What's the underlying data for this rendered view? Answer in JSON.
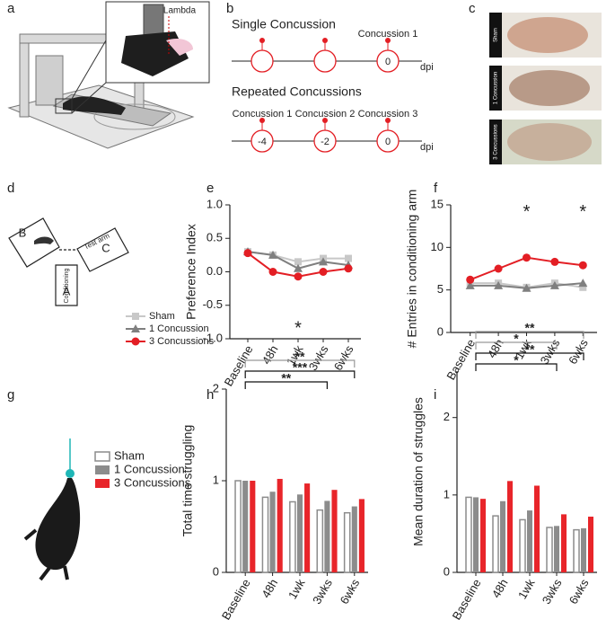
{
  "panel_letters": [
    "a",
    "b",
    "c",
    "d",
    "e",
    "f",
    "g",
    "h",
    "i"
  ],
  "inset_label": "Lambda",
  "timeline": {
    "single": {
      "title": "Single Concussion",
      "event_labels": [
        "Concussion 1"
      ],
      "days": [
        0
      ],
      "unit": "dpi"
    },
    "repeated": {
      "title": "Repeated Concussions",
      "event_labels": [
        "Concussion 1",
        "Concussion 2",
        "Concussion 3"
      ],
      "days": [
        -4,
        -2,
        0
      ],
      "unit": "dpi"
    }
  },
  "brains": [
    "Sham",
    "1 Concussion",
    "3 Concussions"
  ],
  "maze": {
    "arms": [
      "B",
      "C",
      "A"
    ],
    "test_arm": "Test arm",
    "conditioning": "Conditioning"
  },
  "chart_data": [
    {
      "type": "line",
      "ylabel": "Preference Index",
      "categories": [
        "Baseline",
        "48h",
        "1wk",
        "3wks",
        "6wks"
      ],
      "ylim": [
        -1,
        1
      ],
      "yticks": [
        {
          "value": -1,
          "label": "-1.0"
        },
        {
          "value": -0.5,
          "label": "-0.5"
        },
        {
          "value": 0,
          "label": "0.0"
        },
        {
          "value": 0.5,
          "label": "0.5"
        },
        {
          "value": 1,
          "label": "1.0"
        }
      ],
      "series": [
        {
          "name": "Sham",
          "color": "#c8c8c8",
          "marker": "square",
          "values": [
            0.3,
            0.25,
            0.15,
            0.2,
            0.2
          ]
        },
        {
          "name": "1 Concussion",
          "color": "#7f7f7f",
          "marker": "triangle",
          "values": [
            0.3,
            0.25,
            0.05,
            0.15,
            0.1
          ]
        },
        {
          "name": "3 Concussions",
          "color": "#e31e24",
          "marker": "circle",
          "values": [
            0.28,
            0.0,
            -0.07,
            0.0,
            0.05
          ]
        }
      ],
      "annotations": [
        {
          "text": "*",
          "color": "#e31e24",
          "x": "1wk",
          "y": -0.8
        }
      ]
    },
    {
      "type": "line",
      "ylabel": "# Entries in conditioning arm",
      "categories": [
        "Baseline",
        "48h",
        "1wk",
        "3wks",
        "6wks"
      ],
      "ylim": [
        0,
        15
      ],
      "yticks": [
        0,
        5,
        10,
        15
      ],
      "series": [
        {
          "name": "Sham",
          "color": "#c8c8c8",
          "marker": "square",
          "values": [
            5.8,
            5.8,
            5.3,
            5.8,
            5.3
          ]
        },
        {
          "name": "1 Concussion",
          "color": "#7f7f7f",
          "marker": "triangle",
          "values": [
            5.5,
            5.5,
            5.2,
            5.5,
            5.8
          ]
        },
        {
          "name": "3 Concussions",
          "color": "#e31e24",
          "marker": "circle",
          "values": [
            6.2,
            7.5,
            8.8,
            8.3,
            7.9
          ]
        }
      ],
      "annotations": [
        {
          "text": "*",
          "color": "#e31e24",
          "x": "1wk",
          "y": 14.5
        },
        {
          "text": "*",
          "color": "#e31e24",
          "x": "6wks",
          "y": 14.5
        }
      ]
    },
    {
      "type": "bar",
      "ylabel": "Total time struggling",
      "categories": [
        "Baseline",
        "48h",
        "1wk",
        "3wks",
        "6wks"
      ],
      "ylim": [
        0,
        2
      ],
      "yticks": [
        0,
        1,
        2
      ],
      "series": [
        {
          "name": "Sham",
          "color": "#ffffff",
          "edgecolor": "#8c8c8c",
          "values": [
            1.0,
            0.82,
            0.77,
            0.68,
            0.65
          ]
        },
        {
          "name": "1 Concussion",
          "color": "#8c8c8c",
          "values": [
            1.0,
            0.88,
            0.85,
            0.78,
            0.72
          ]
        },
        {
          "name": "3 Concussions",
          "color": "#e8252a",
          "values": [
            1.0,
            1.02,
            0.97,
            0.9,
            0.8
          ]
        }
      ],
      "brackets": [
        {
          "text": "**",
          "color": "#999999",
          "from": "Baseline",
          "to": "6wks"
        },
        {
          "text": "***",
          "color": "#111111",
          "from": "Baseline",
          "to": "6wks"
        },
        {
          "text": "**",
          "color": "#111111",
          "from": "Baseline",
          "to": "3wks"
        }
      ]
    },
    {
      "type": "bar",
      "ylabel": "Mean duration of struggles",
      "categories": [
        "Baseline",
        "48h",
        "1wk",
        "3wks",
        "6wks"
      ],
      "ylim": [
        0,
        2.6
      ],
      "yticks": [
        0,
        1,
        2
      ],
      "series": [
        {
          "name": "Sham",
          "color": "#ffffff",
          "edgecolor": "#8c8c8c",
          "values": [
            0.97,
            0.73,
            0.68,
            0.58,
            0.55
          ]
        },
        {
          "name": "1 Concussion",
          "color": "#8c8c8c",
          "values": [
            0.97,
            0.92,
            0.8,
            0.6,
            0.57
          ]
        },
        {
          "name": "3 Concussions",
          "color": "#e8252a",
          "values": [
            0.95,
            1.18,
            1.12,
            0.75,
            0.72
          ]
        }
      ],
      "brackets": [
        {
          "text": "**",
          "color": "#999999",
          "from": "Baseline",
          "to": "6wks"
        },
        {
          "text": "*",
          "color": "#999999",
          "from": "Baseline",
          "to": "3wks"
        },
        {
          "text": "**",
          "color": "#111111",
          "from": "Baseline",
          "to": "6wks"
        },
        {
          "text": "*",
          "color": "#111111",
          "from": "Baseline",
          "to": "3wks"
        }
      ]
    }
  ]
}
